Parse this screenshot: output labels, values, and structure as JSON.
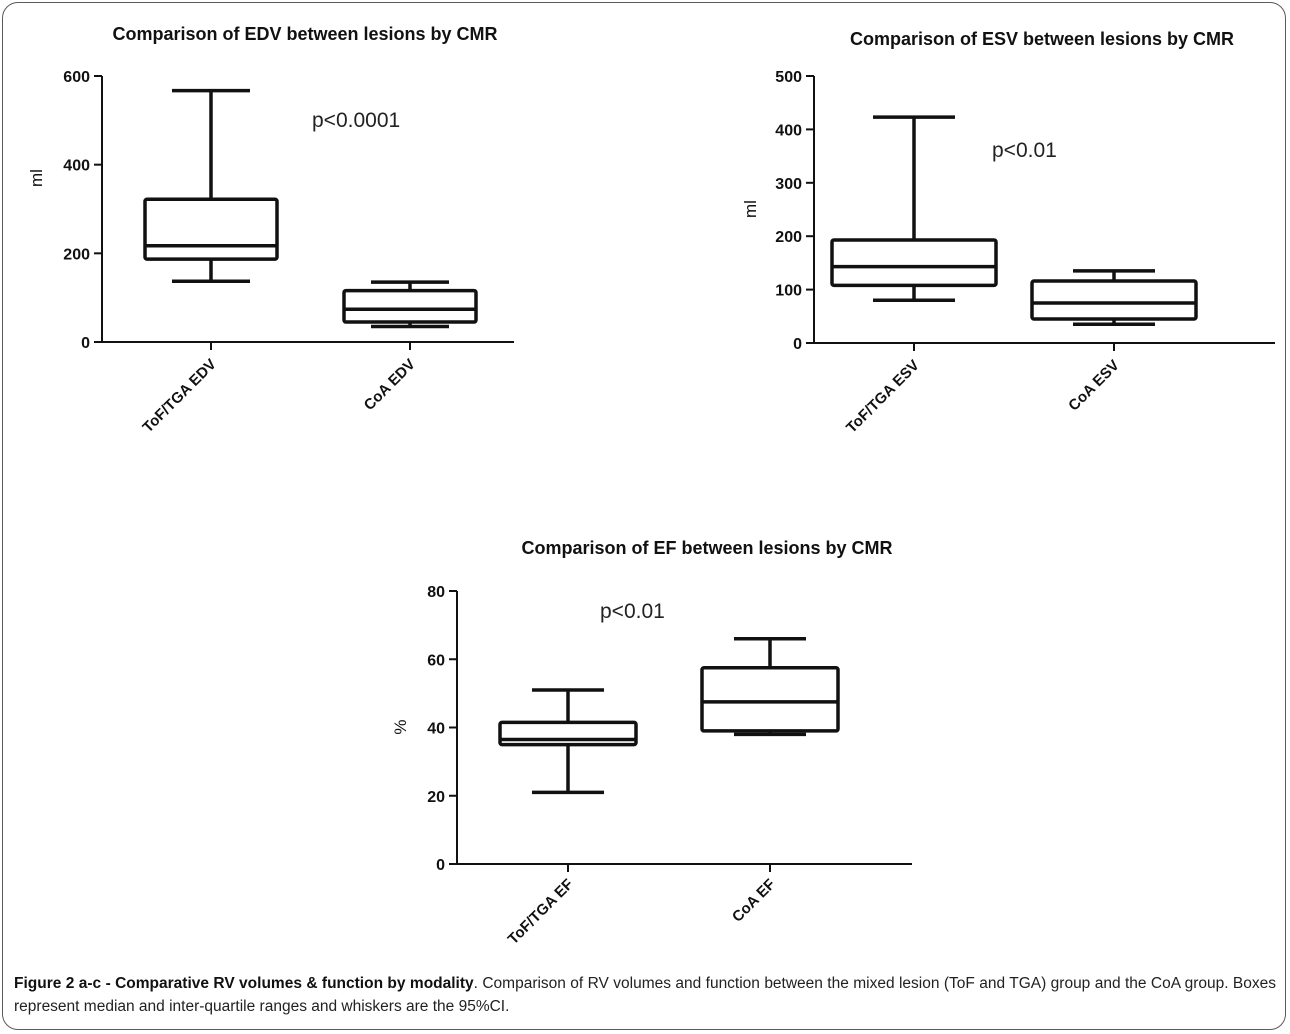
{
  "chart_data": [
    {
      "type": "box",
      "title": "Comparison of EDV between lesions by CMR",
      "ylabel": "ml",
      "ylim": [
        0,
        600
      ],
      "yticks": [
        0,
        200,
        400,
        600
      ],
      "annotation": "p<0.0001",
      "categories": [
        "ToF/TGA EDV",
        "CoA EDV"
      ],
      "boxes": [
        {
          "whisker_low": 137,
          "q1": 187,
          "median": 217,
          "q3": 322,
          "whisker_high": 567
        },
        {
          "whisker_low": 35,
          "q1": 45,
          "median": 74,
          "q3": 116,
          "whisker_high": 135
        }
      ]
    },
    {
      "type": "box",
      "title": "Comparison of ESV between lesions by CMR",
      "ylabel": "ml",
      "ylim": [
        0,
        500
      ],
      "yticks": [
        0,
        100,
        200,
        300,
        400,
        500
      ],
      "annotation": "p<0.01",
      "categories": [
        "ToF/TGA ESV",
        "CoA ESV"
      ],
      "boxes": [
        {
          "whisker_low": 80,
          "q1": 108,
          "median": 143,
          "q3": 193,
          "whisker_high": 423
        },
        {
          "whisker_low": 35,
          "q1": 45,
          "median": 75,
          "q3": 116,
          "whisker_high": 135
        }
      ]
    },
    {
      "type": "box",
      "title": "Comparison of EF between lesions by CMR",
      "ylabel": "%",
      "ylim": [
        0,
        80
      ],
      "yticks": [
        0,
        20,
        40,
        60,
        80
      ],
      "annotation": "p<0.01",
      "categories": [
        "ToF/TGA EF",
        "CoA EF"
      ],
      "boxes": [
        {
          "whisker_low": 21,
          "q1": 35,
          "median": 36.5,
          "q3": 41.5,
          "whisker_high": 51
        },
        {
          "whisker_low": 38,
          "q1": 39,
          "median": 47.5,
          "q3": 57.5,
          "whisker_high": 66
        }
      ]
    }
  ],
  "caption": {
    "label": "Figure 2 a-c - Comparative RV volumes & function by modality",
    "text": ". Comparison of RV volumes and function between the mixed lesion (ToF and TGA) group and the CoA group. Boxes represent median and inter-quartile ranges and whiskers are the 95%CI."
  }
}
